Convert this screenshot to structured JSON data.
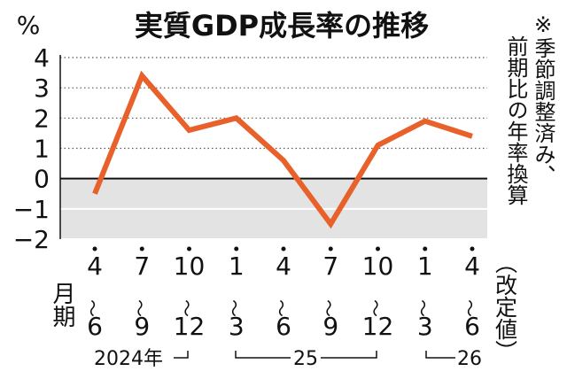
{
  "chart_data": {
    "type": "line",
    "title": "実質GDP成長率の推移",
    "y_unit": "%",
    "note": [
      "※季節調整済み、",
      "前期比の年率換算"
    ],
    "x_label": "月期",
    "revision_note": "（改定値）",
    "year_labels": [
      "2024年",
      "25",
      "26"
    ],
    "categories": [
      "4〜6",
      "7〜9",
      "10〜12",
      "1〜3",
      "4〜6",
      "7〜9",
      "10〜12",
      "1〜3",
      "4〜6"
    ],
    "series": [
      {
        "name": "実質GDP成長率",
        "color": "#e8602a",
        "values": [
          -0.5,
          3.4,
          1.6,
          2.0,
          0.6,
          -1.5,
          1.1,
          1.9,
          1.4
        ]
      }
    ],
    "ylim": [
      -2,
      4
    ],
    "yticks": [
      {
        "value": -2,
        "label": "−2"
      },
      {
        "value": -1,
        "label": "−1"
      },
      0,
      1,
      2,
      3,
      4
    ],
    "grid": true,
    "negative_shading": "#e3e3e3"
  }
}
